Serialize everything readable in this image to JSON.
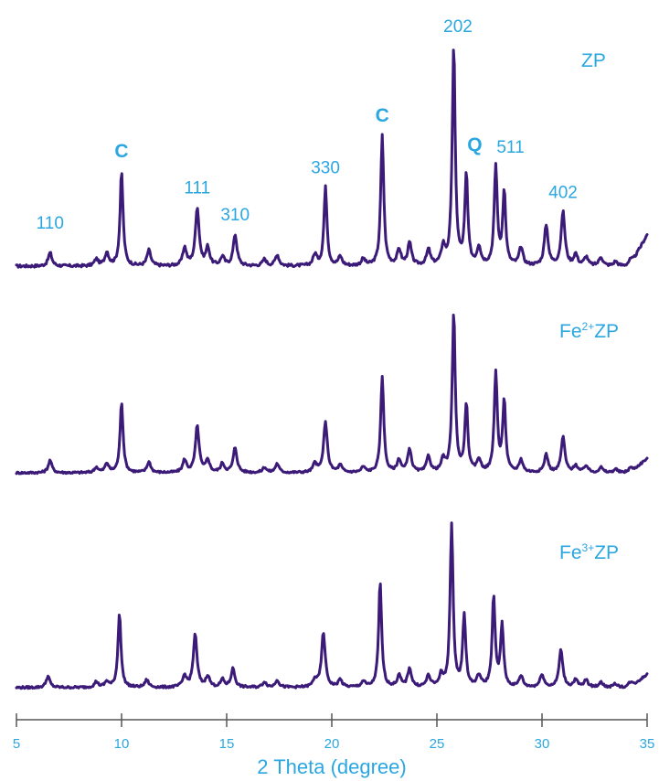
{
  "chart_data": {
    "type": "line",
    "xlabel": "2 Theta (degree)",
    "ylabel": "",
    "xlim": [
      5,
      35
    ],
    "x_ticks": [
      5,
      10,
      15,
      20,
      25,
      30,
      35
    ],
    "x_tick_labels": [
      "5",
      "10",
      "15",
      "20",
      "25",
      "30",
      "35"
    ],
    "grid": false,
    "series_labels": [
      {
        "base": "ZP",
        "sup": ""
      },
      {
        "base": "Fe",
        "sup": "2+",
        "rest": "ZP"
      },
      {
        "base": "Fe",
        "sup": "3+",
        "rest": "ZP"
      }
    ],
    "peak_annotations": [
      {
        "text": "110",
        "x": 6.6
      },
      {
        "text": "C",
        "x": 10.0
      },
      {
        "text": "111",
        "x": 13.6
      },
      {
        "text": "310",
        "x": 15.4
      },
      {
        "text": "330",
        "x": 19.7
      },
      {
        "text": "C",
        "x": 22.4
      },
      {
        "text": "202",
        "x": 25.8
      },
      {
        "text": "Q",
        "x": 26.4
      },
      {
        "text": "511",
        "x": 28.0
      },
      {
        "text": "402",
        "x": 31.0
      }
    ],
    "series": [
      {
        "name": "ZP",
        "peaks": [
          [
            6.6,
            0.06
          ],
          [
            8.8,
            0.03
          ],
          [
            9.3,
            0.06
          ],
          [
            10.0,
            0.42
          ],
          [
            11.3,
            0.07
          ],
          [
            13.0,
            0.08
          ],
          [
            13.6,
            0.26
          ],
          [
            14.1,
            0.08
          ],
          [
            14.8,
            0.04
          ],
          [
            15.4,
            0.14
          ],
          [
            16.8,
            0.03
          ],
          [
            17.4,
            0.05
          ],
          [
            19.2,
            0.05
          ],
          [
            19.7,
            0.35
          ],
          [
            20.4,
            0.04
          ],
          [
            21.5,
            0.03
          ],
          [
            22.4,
            0.58
          ],
          [
            23.2,
            0.07
          ],
          [
            23.7,
            0.1
          ],
          [
            24.6,
            0.07
          ],
          [
            25.3,
            0.08
          ],
          [
            25.8,
            0.98
          ],
          [
            26.4,
            0.4
          ],
          [
            27.0,
            0.08
          ],
          [
            27.8,
            0.44
          ],
          [
            28.2,
            0.33
          ],
          [
            29.0,
            0.08
          ],
          [
            30.2,
            0.18
          ],
          [
            31.0,
            0.24
          ],
          [
            31.6,
            0.05
          ],
          [
            32.1,
            0.04
          ],
          [
            32.8,
            0.04
          ],
          [
            33.5,
            0.02
          ],
          [
            34.2,
            0.03
          ]
        ],
        "baseline": 0.02,
        "end_rise": 0.14
      },
      {
        "name": "Fe2+ZP",
        "peaks": [
          [
            6.6,
            0.07
          ],
          [
            8.8,
            0.03
          ],
          [
            9.3,
            0.05
          ],
          [
            10.0,
            0.4
          ],
          [
            11.3,
            0.06
          ],
          [
            13.0,
            0.07
          ],
          [
            13.6,
            0.26
          ],
          [
            14.1,
            0.07
          ],
          [
            14.8,
            0.05
          ],
          [
            15.4,
            0.14
          ],
          [
            16.8,
            0.03
          ],
          [
            17.4,
            0.05
          ],
          [
            19.2,
            0.05
          ],
          [
            19.7,
            0.28
          ],
          [
            20.4,
            0.04
          ],
          [
            21.5,
            0.03
          ],
          [
            22.4,
            0.54
          ],
          [
            23.2,
            0.07
          ],
          [
            23.7,
            0.13
          ],
          [
            24.6,
            0.09
          ],
          [
            25.3,
            0.07
          ],
          [
            25.8,
            0.9
          ],
          [
            26.4,
            0.38
          ],
          [
            27.0,
            0.07
          ],
          [
            27.8,
            0.56
          ],
          [
            28.2,
            0.4
          ],
          [
            29.0,
            0.07
          ],
          [
            30.2,
            0.1
          ],
          [
            31.0,
            0.2
          ],
          [
            31.6,
            0.04
          ],
          [
            32.1,
            0.04
          ],
          [
            32.8,
            0.03
          ],
          [
            33.5,
            0.02
          ],
          [
            34.2,
            0.03
          ]
        ],
        "baseline": 0.02,
        "end_rise": 0.08
      },
      {
        "name": "Fe3+ZP",
        "peaks": [
          [
            6.5,
            0.06
          ],
          [
            8.8,
            0.03
          ],
          [
            9.3,
            0.03
          ],
          [
            9.9,
            0.4
          ],
          [
            11.2,
            0.04
          ],
          [
            13.0,
            0.06
          ],
          [
            13.5,
            0.28
          ],
          [
            14.1,
            0.06
          ],
          [
            14.8,
            0.04
          ],
          [
            15.3,
            0.1
          ],
          [
            16.8,
            0.03
          ],
          [
            17.4,
            0.04
          ],
          [
            19.2,
            0.04
          ],
          [
            19.6,
            0.29
          ],
          [
            20.4,
            0.04
          ],
          [
            21.5,
            0.03
          ],
          [
            22.3,
            0.56
          ],
          [
            23.2,
            0.06
          ],
          [
            23.7,
            0.1
          ],
          [
            24.6,
            0.06
          ],
          [
            25.2,
            0.06
          ],
          [
            25.7,
            0.86
          ],
          [
            26.3,
            0.38
          ],
          [
            27.0,
            0.06
          ],
          [
            27.7,
            0.48
          ],
          [
            28.1,
            0.33
          ],
          [
            29.0,
            0.06
          ],
          [
            30.0,
            0.07
          ],
          [
            30.9,
            0.2
          ],
          [
            31.6,
            0.04
          ],
          [
            32.1,
            0.04
          ],
          [
            32.8,
            0.03
          ],
          [
            33.5,
            0.02
          ],
          [
            34.2,
            0.03
          ]
        ],
        "baseline": 0.02,
        "end_rise": 0.07
      }
    ]
  }
}
